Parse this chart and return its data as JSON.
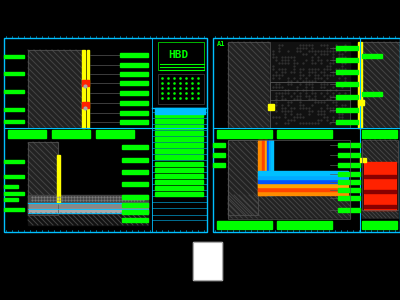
{
  "bg": "#000000",
  "cyan": "#00BFFF",
  "green": "#00FF00",
  "yellow": "#FFFF00",
  "red": "#FF2200",
  "orange": "#FF8C00",
  "orange2": "#FFA500",
  "blue1": "#0055FF",
  "blue2": "#00AAFF",
  "white": "#FFFFFF",
  "dark_gray": "#222222",
  "mid_gray": "#555555",
  "hatch_gray": "#444444",
  "title_green": "#00FF00",
  "fig_w": 4.0,
  "fig_h": 3.0,
  "dpi": 100
}
